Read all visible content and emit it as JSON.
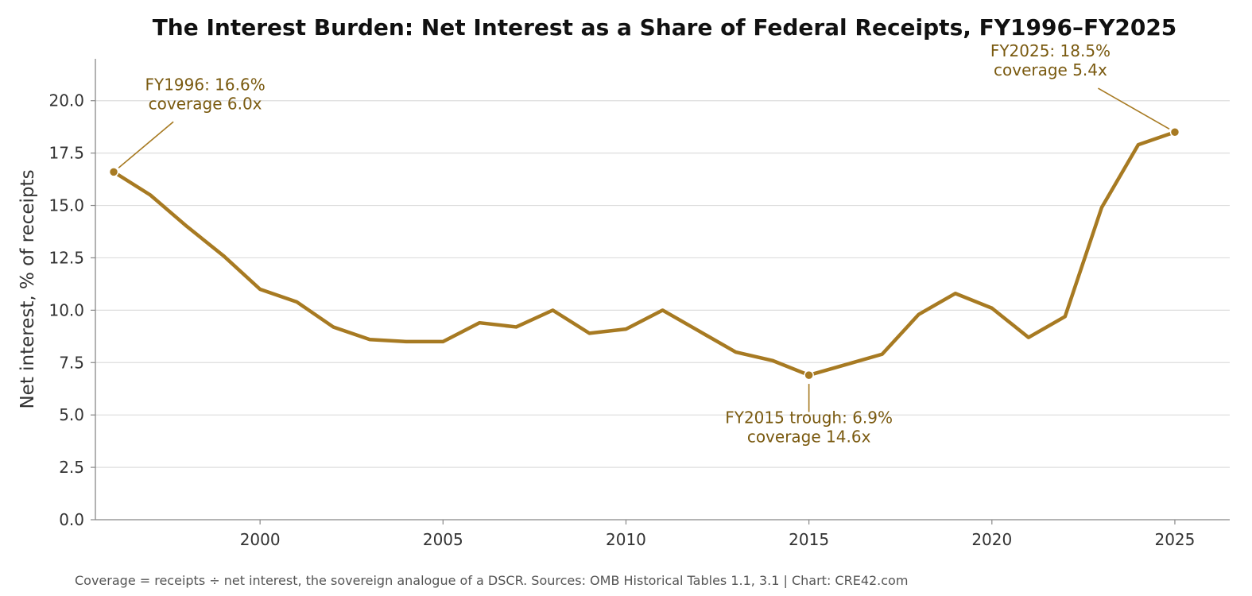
{
  "chart_data": {
    "type": "line",
    "title": "The Interest Burden: Net Interest as a Share of Federal Receipts, FY1996–FY2025",
    "xlabel": "",
    "ylabel": "Net interest, % of receipts",
    "xlim": [
      1995.5,
      2026.5
    ],
    "ylim": [
      0,
      22
    ],
    "x_ticks": [
      2000,
      2005,
      2010,
      2015,
      2020,
      2025
    ],
    "y_ticks": [
      0.0,
      2.5,
      5.0,
      7.5,
      10.0,
      12.5,
      15.0,
      17.5,
      20.0
    ],
    "grid": "horizontal",
    "series": [
      {
        "x": [
          1996,
          1997,
          1998,
          1999,
          2000,
          2001,
          2002,
          2003,
          2004,
          2005,
          2006,
          2007,
          2008,
          2009,
          2010,
          2011,
          2012,
          2013,
          2014,
          2015,
          2016,
          2017,
          2018,
          2019,
          2020,
          2021,
          2022,
          2023,
          2024,
          2025
        ],
        "values": [
          16.6,
          15.5,
          14.0,
          12.6,
          11.0,
          10.4,
          9.2,
          8.6,
          8.5,
          8.5,
          9.4,
          9.2,
          10.0,
          8.9,
          9.1,
          10.0,
          9.0,
          8.0,
          7.6,
          6.9,
          7.4,
          7.9,
          9.8,
          10.8,
          10.1,
          8.7,
          9.7,
          14.9,
          17.9,
          18.5
        ],
        "color": "#a77a22"
      }
    ],
    "annotations": [
      {
        "x": 1996,
        "y": 16.6,
        "line1": "FY1996: 16.6%",
        "line2": "coverage 6.0x",
        "text_x": 1998.5,
        "text_y": 19.6
      },
      {
        "x": 2015,
        "y": 6.9,
        "line1": "FY2015 trough: 6.9%",
        "line2": "coverage 14.6x",
        "text_x": 2015,
        "text_y": 3.7
      },
      {
        "x": 2025,
        "y": 18.5,
        "line1": "FY2025: 18.5%",
        "line2": "coverage 5.4x",
        "text_x": 2021.6,
        "text_y": 21.2
      }
    ],
    "footer": "Coverage = receipts ÷ net interest, the sovereign analogue of a DSCR. Sources: OMB Historical Tables 1.1, 3.1 | Chart: CRE42.com"
  },
  "colors": {
    "line": "#a77a22",
    "annotation_text": "#7a5a10",
    "grid": "#dddddd",
    "axis": "#888888"
  }
}
